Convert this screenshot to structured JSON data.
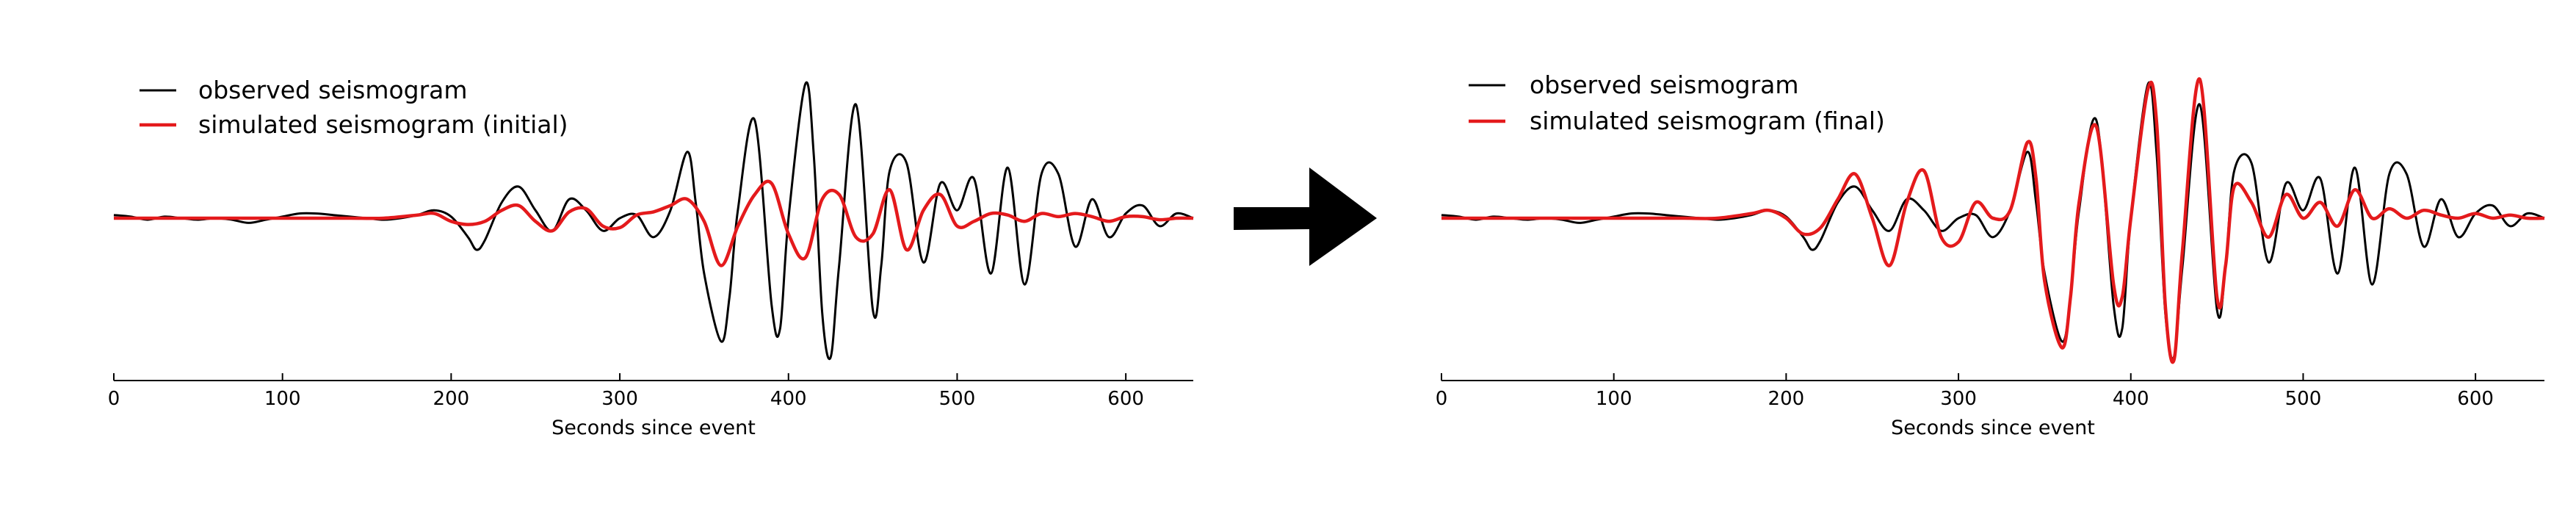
{
  "arrow": {
    "icon": "right-arrow-icon"
  },
  "chart_data": [
    {
      "type": "line",
      "xlabel": "Seconds since event",
      "ylabel": "",
      "xlim": [
        0,
        640
      ],
      "xticks": [
        0,
        100,
        200,
        300,
        400,
        500,
        600
      ],
      "grid": false,
      "legend_position": "top-left",
      "legend": [
        "observed seismogram",
        "simulated seismogram (initial)"
      ],
      "series": [
        {
          "name": "observed seismogram",
          "color": "#000000",
          "x": [
            0,
            10,
            20,
            30,
            40,
            50,
            60,
            70,
            80,
            90,
            100,
            110,
            120,
            130,
            140,
            150,
            160,
            170,
            180,
            190,
            200,
            210,
            215,
            220,
            230,
            240,
            250,
            260,
            270,
            280,
            290,
            300,
            310,
            320,
            330,
            340,
            345,
            350,
            360,
            365,
            370,
            380,
            390,
            395,
            400,
            410,
            415,
            420,
            425,
            430,
            440,
            450,
            455,
            460,
            470,
            480,
            490,
            500,
            510,
            520,
            530,
            540,
            550,
            560,
            570,
            580,
            590,
            600,
            610,
            620,
            630,
            640
          ],
          "y": [
            0.02,
            0.01,
            -0.01,
            0.01,
            0.0,
            -0.01,
            0.0,
            -0.01,
            -0.03,
            -0.01,
            0.01,
            0.03,
            0.03,
            0.02,
            0.01,
            0.0,
            -0.01,
            0.0,
            0.02,
            0.05,
            0.01,
            -0.12,
            -0.2,
            -0.14,
            0.1,
            0.2,
            0.05,
            -0.08,
            0.12,
            0.05,
            -0.08,
            0.0,
            0.02,
            -0.12,
            0.05,
            0.42,
            0.1,
            -0.35,
            -0.78,
            -0.5,
            0.05,
            0.62,
            -0.55,
            -0.7,
            0.0,
            0.85,
            0.4,
            -0.6,
            -0.88,
            -0.3,
            0.72,
            -0.58,
            -0.3,
            0.3,
            0.35,
            -0.28,
            0.22,
            0.05,
            0.25,
            -0.35,
            0.32,
            -0.42,
            0.28,
            0.28,
            -0.18,
            0.12,
            -0.12,
            0.03,
            0.08,
            -0.05,
            0.03,
            0.0
          ]
        },
        {
          "name": "simulated seismogram (initial)",
          "color": "#e41a1c",
          "x": [
            0,
            20,
            40,
            60,
            80,
            100,
            120,
            140,
            160,
            180,
            190,
            200,
            210,
            220,
            230,
            240,
            250,
            260,
            270,
            280,
            290,
            300,
            310,
            320,
            330,
            340,
            350,
            360,
            370,
            380,
            390,
            400,
            410,
            420,
            430,
            440,
            450,
            460,
            470,
            480,
            490,
            500,
            510,
            520,
            530,
            540,
            550,
            560,
            570,
            580,
            590,
            600,
            610,
            620,
            630,
            640
          ],
          "y": [
            0.0,
            0.0,
            0.0,
            0.0,
            0.0,
            0.0,
            0.0,
            0.0,
            0.0,
            0.02,
            0.03,
            -0.02,
            -0.04,
            -0.02,
            0.05,
            0.08,
            -0.02,
            -0.08,
            0.04,
            0.06,
            -0.05,
            -0.06,
            0.02,
            0.04,
            0.08,
            0.12,
            -0.02,
            -0.3,
            -0.05,
            0.15,
            0.22,
            -0.1,
            -0.25,
            0.12,
            0.15,
            -0.12,
            -0.1,
            0.18,
            -0.2,
            0.05,
            0.15,
            -0.05,
            -0.02,
            0.03,
            0.02,
            -0.02,
            0.03,
            0.01,
            0.03,
            0.01,
            -0.02,
            0.01,
            0.01,
            -0.01,
            0.0,
            0.0
          ]
        }
      ]
    },
    {
      "type": "line",
      "xlabel": "Seconds since event",
      "ylabel": "",
      "xlim": [
        0,
        640
      ],
      "xticks": [
        0,
        100,
        200,
        300,
        400,
        500,
        600
      ],
      "grid": false,
      "legend_position": "top-left",
      "legend": [
        "observed seismogram",
        "simulated seismogram (final)"
      ],
      "series": [
        {
          "name": "observed seismogram",
          "color": "#000000",
          "x": [
            0,
            10,
            20,
            30,
            40,
            50,
            60,
            70,
            80,
            90,
            100,
            110,
            120,
            130,
            140,
            150,
            160,
            170,
            180,
            190,
            200,
            210,
            215,
            220,
            230,
            240,
            250,
            260,
            270,
            280,
            290,
            300,
            310,
            320,
            330,
            340,
            345,
            350,
            360,
            365,
            370,
            380,
            390,
            395,
            400,
            410,
            415,
            420,
            425,
            430,
            440,
            450,
            455,
            460,
            470,
            480,
            490,
            500,
            510,
            520,
            530,
            540,
            550,
            560,
            570,
            580,
            590,
            600,
            610,
            620,
            630,
            640
          ],
          "y": [
            0.02,
            0.01,
            -0.01,
            0.01,
            0.0,
            -0.01,
            0.0,
            -0.01,
            -0.03,
            -0.01,
            0.01,
            0.03,
            0.03,
            0.02,
            0.01,
            0.0,
            -0.01,
            0.0,
            0.02,
            0.05,
            0.01,
            -0.12,
            -0.2,
            -0.14,
            0.1,
            0.2,
            0.05,
            -0.08,
            0.12,
            0.05,
            -0.08,
            0.0,
            0.02,
            -0.12,
            0.05,
            0.42,
            0.1,
            -0.35,
            -0.78,
            -0.5,
            0.05,
            0.62,
            -0.55,
            -0.7,
            0.0,
            0.85,
            0.4,
            -0.6,
            -0.88,
            -0.3,
            0.72,
            -0.58,
            -0.3,
            0.3,
            0.35,
            -0.28,
            0.22,
            0.05,
            0.25,
            -0.35,
            0.32,
            -0.42,
            0.28,
            0.28,
            -0.18,
            0.12,
            -0.12,
            0.03,
            0.08,
            -0.05,
            0.03,
            0.0
          ]
        },
        {
          "name": "simulated seismogram (final)",
          "color": "#e41a1c",
          "x": [
            0,
            20,
            40,
            60,
            80,
            100,
            120,
            140,
            160,
            180,
            190,
            200,
            210,
            220,
            230,
            240,
            250,
            260,
            270,
            280,
            290,
            300,
            310,
            320,
            330,
            340,
            345,
            350,
            360,
            365,
            370,
            380,
            390,
            395,
            400,
            410,
            415,
            420,
            425,
            430,
            440,
            450,
            455,
            460,
            470,
            480,
            490,
            500,
            510,
            520,
            530,
            540,
            550,
            560,
            570,
            580,
            590,
            600,
            610,
            620,
            630,
            640
          ],
          "y": [
            0.0,
            0.0,
            0.0,
            0.0,
            0.0,
            0.0,
            0.0,
            0.0,
            0.0,
            0.03,
            0.05,
            0.0,
            -0.1,
            -0.06,
            0.12,
            0.28,
            0.0,
            -0.3,
            0.1,
            0.3,
            -0.12,
            -0.15,
            0.1,
            0.0,
            0.05,
            0.48,
            0.25,
            -0.4,
            -0.82,
            -0.5,
            0.1,
            0.58,
            -0.42,
            -0.5,
            0.0,
            0.82,
            0.6,
            -0.55,
            -0.9,
            -0.2,
            0.88,
            -0.5,
            -0.3,
            0.2,
            0.1,
            -0.12,
            0.15,
            0.0,
            0.1,
            -0.05,
            0.18,
            0.0,
            0.06,
            0.0,
            0.05,
            0.02,
            0.0,
            0.03,
            0.0,
            0.02,
            0.0,
            0.0
          ]
        }
      ]
    }
  ]
}
